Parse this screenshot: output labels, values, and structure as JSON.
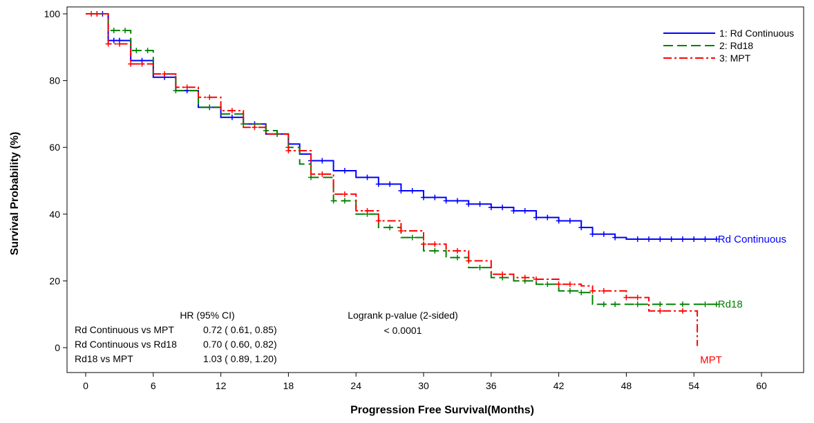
{
  "chart_data": {
    "type": "line",
    "xlabel": "Progression Free Survival(Months)",
    "ylabel": "Survival Probability (%)",
    "xlim": [
      0,
      63
    ],
    "ylim": [
      -5,
      101
    ],
    "x_ticks": [
      0,
      6,
      12,
      18,
      24,
      30,
      36,
      42,
      48,
      54,
      60
    ],
    "y_ticks": [
      0,
      20,
      40,
      60,
      80,
      100
    ],
    "legend_position": "top-right",
    "series": [
      {
        "name": "1: Rd Continuous",
        "end_label": "Rd Continuous",
        "color": "#0000ff",
        "dash": "solid",
        "points": [
          [
            0,
            100
          ],
          [
            2,
            92
          ],
          [
            4,
            86
          ],
          [
            6,
            81
          ],
          [
            8,
            77
          ],
          [
            10,
            72
          ],
          [
            12,
            69
          ],
          [
            14,
            67
          ],
          [
            16,
            64
          ],
          [
            18,
            61
          ],
          [
            19,
            58
          ],
          [
            20,
            56
          ],
          [
            22,
            53
          ],
          [
            24,
            51
          ],
          [
            26,
            49
          ],
          [
            28,
            47
          ],
          [
            30,
            45
          ],
          [
            32,
            44
          ],
          [
            34,
            43
          ],
          [
            36,
            42
          ],
          [
            38,
            41
          ],
          [
            40,
            39
          ],
          [
            42,
            38
          ],
          [
            44,
            36
          ],
          [
            45,
            34
          ],
          [
            47,
            33
          ],
          [
            48,
            32.5
          ],
          [
            52,
            32.5
          ],
          [
            56,
            32.5
          ]
        ],
        "censor_x": [
          1,
          1.5,
          2.5,
          3,
          5,
          7,
          9,
          11,
          13,
          15,
          17,
          20,
          21,
          23,
          25,
          26,
          27,
          28,
          29,
          30,
          31,
          32,
          33,
          34,
          35,
          36,
          37,
          38,
          39,
          40,
          41,
          42,
          43,
          44,
          45,
          46,
          47,
          49,
          50,
          51,
          52,
          53,
          54,
          55,
          56
        ]
      },
      {
        "name": "2: Rd18",
        "end_label": "Rd18",
        "color": "#008000",
        "dash": "long-dash",
        "points": [
          [
            0,
            100
          ],
          [
            2,
            95
          ],
          [
            4,
            89
          ],
          [
            6,
            82
          ],
          [
            8,
            77
          ],
          [
            10,
            72
          ],
          [
            12,
            70
          ],
          [
            14,
            67
          ],
          [
            16,
            65
          ],
          [
            17,
            64
          ],
          [
            18,
            60
          ],
          [
            19,
            55
          ],
          [
            20,
            51
          ],
          [
            22,
            44
          ],
          [
            24,
            40
          ],
          [
            26,
            36
          ],
          [
            28,
            33
          ],
          [
            30,
            29
          ],
          [
            32,
            27
          ],
          [
            34,
            24
          ],
          [
            36,
            21
          ],
          [
            38,
            20
          ],
          [
            40,
            19
          ],
          [
            42,
            17
          ],
          [
            44,
            16.5
          ],
          [
            45,
            13
          ],
          [
            48,
            13
          ],
          [
            56,
            13
          ]
        ],
        "censor_x": [
          1,
          2.5,
          3.5,
          4.5,
          5.5,
          8,
          11,
          14,
          16,
          17,
          18,
          20,
          22,
          23,
          25,
          27,
          29,
          31,
          33,
          35,
          37,
          39,
          41,
          43,
          44,
          46,
          47,
          49,
          51,
          53,
          55,
          56
        ]
      },
      {
        "name": "3: MPT",
        "end_label": "MPT",
        "color": "#ff0000",
        "dash": "dash-dot",
        "points": [
          [
            0,
            100
          ],
          [
            2,
            91
          ],
          [
            4,
            85
          ],
          [
            6,
            82
          ],
          [
            8,
            78
          ],
          [
            10,
            75
          ],
          [
            12,
            71
          ],
          [
            14,
            66
          ],
          [
            16,
            64
          ],
          [
            18,
            59
          ],
          [
            20,
            52
          ],
          [
            22,
            46
          ],
          [
            24,
            41
          ],
          [
            26,
            38
          ],
          [
            28,
            35
          ],
          [
            30,
            31
          ],
          [
            32,
            29
          ],
          [
            34,
            26
          ],
          [
            36,
            22
          ],
          [
            38,
            21
          ],
          [
            40,
            20.5
          ],
          [
            42,
            19
          ],
          [
            44,
            18.5
          ],
          [
            45,
            17
          ],
          [
            48,
            15
          ],
          [
            50,
            11
          ],
          [
            54,
            11
          ],
          [
            54.3,
            0.5
          ]
        ],
        "censor_x": [
          0.5,
          1,
          2,
          3,
          4,
          5,
          7,
          9,
          11,
          13,
          15,
          18,
          21,
          23,
          25,
          26,
          28,
          30,
          31,
          33,
          34,
          37,
          39,
          40,
          42,
          43,
          45,
          46,
          48,
          49,
          51,
          53
        ]
      }
    ],
    "annotation": {
      "hr_header": "HR (95% CI)",
      "pvalue_header": "Logrank p-value (2-sided)",
      "pvalue": "< 0.0001",
      "rows": [
        {
          "label": "Rd Continuous vs MPT",
          "value": "0.72 ( 0.61,  0.85)"
        },
        {
          "label": "Rd Continuous vs Rd18",
          "value": "0.70 ( 0.60,  0.82)"
        },
        {
          "label": "Rd18 vs MPT",
          "value": "1.03 ( 0.89,  1.20)"
        }
      ]
    }
  }
}
